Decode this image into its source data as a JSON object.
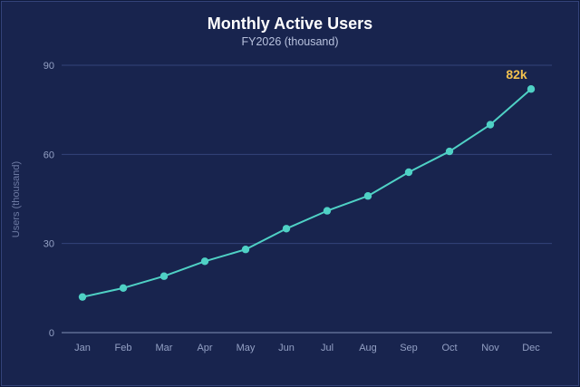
{
  "chart_data": {
    "type": "line",
    "title": "Monthly Active Users",
    "subtitle": "FY2026 (thousand)",
    "xlabel": "",
    "ylabel": "Users (thousand)",
    "categories": [
      "Jan",
      "Feb",
      "Mar",
      "Apr",
      "May",
      "Jun",
      "Jul",
      "Aug",
      "Sep",
      "Oct",
      "Nov",
      "Dec"
    ],
    "values": [
      12,
      15,
      19,
      24,
      28,
      35,
      41,
      46,
      54,
      61,
      70,
      82
    ],
    "ylim": [
      0,
      90
    ],
    "yticks": [
      "0",
      "30",
      "60",
      "90"
    ],
    "grid": true,
    "legend": "none",
    "annotation": {
      "category": "Dec",
      "text": "82k"
    },
    "colors": {
      "line": "#4fd1c5",
      "grid": "#34437a",
      "annotation": "#f2c14e",
      "background": "#18244e"
    }
  }
}
